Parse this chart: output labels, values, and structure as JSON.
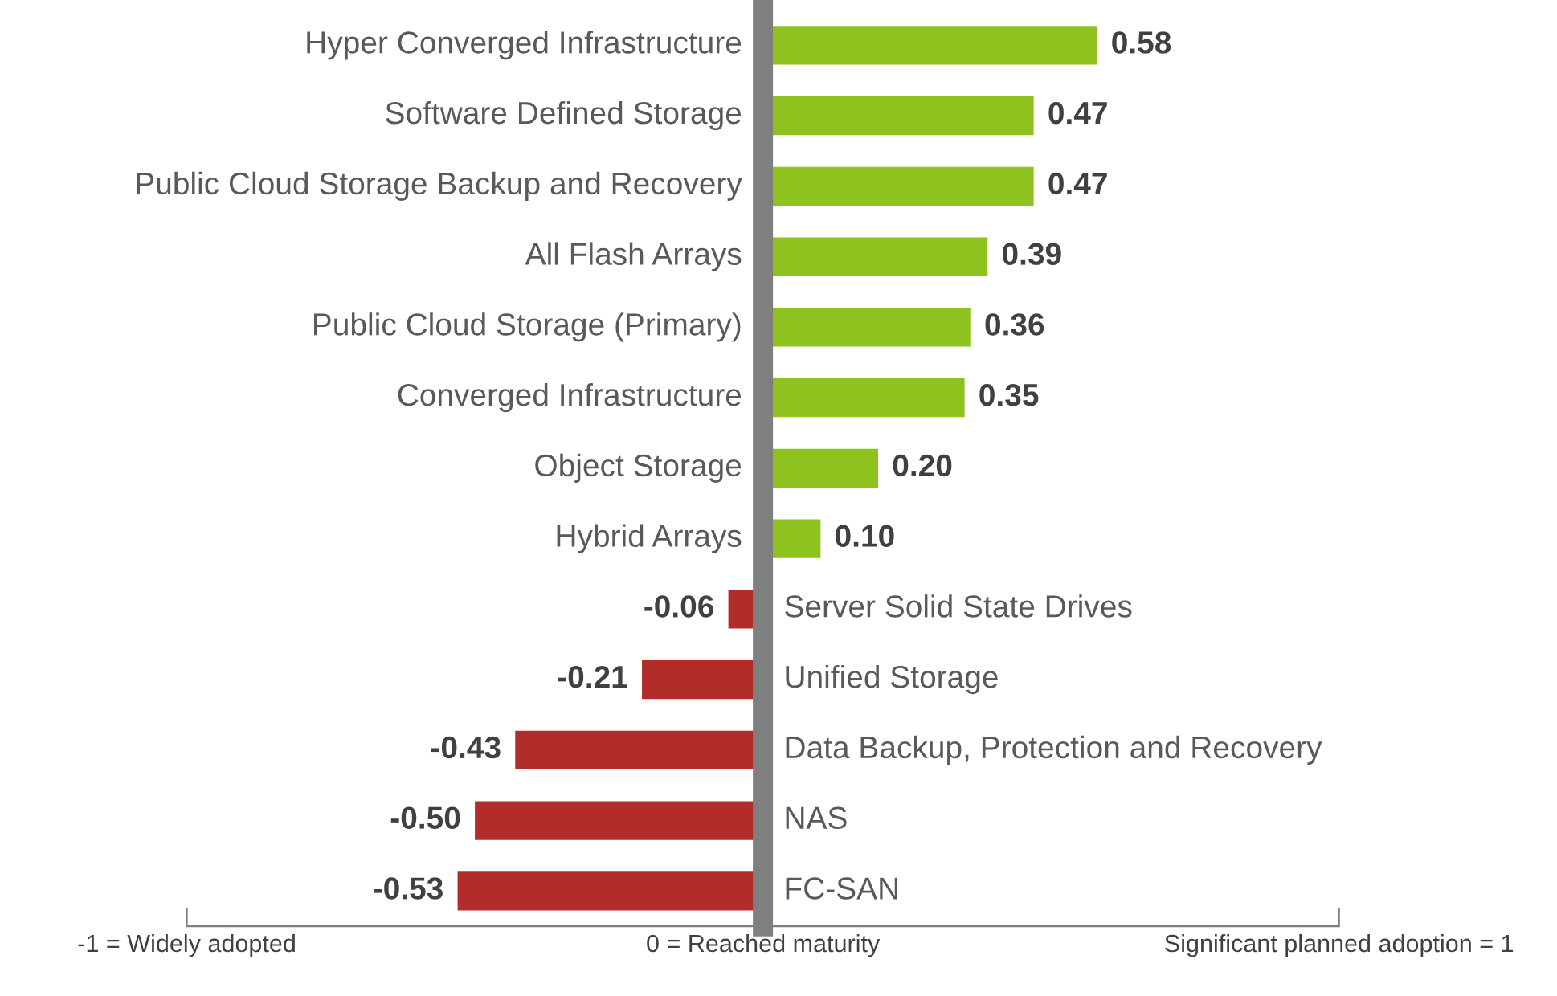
{
  "chart_data": {
    "type": "bar",
    "orientation": "horizontal",
    "categories": [
      "Hyper Converged Infrastructure",
      "Software Defined Storage",
      "Public Cloud Storage Backup and Recovery",
      "All Flash Arrays",
      "Public Cloud Storage (Primary)",
      "Converged Infrastructure",
      "Object Storage",
      "Hybrid Arrays",
      "Server Solid State Drives",
      "Unified Storage",
      "Data Backup, Protection and Recovery",
      "NAS",
      "FC-SAN"
    ],
    "values": [
      0.58,
      0.47,
      0.47,
      0.39,
      0.36,
      0.35,
      0.2,
      0.1,
      -0.06,
      -0.21,
      -0.43,
      -0.5,
      -0.53
    ],
    "colors": [
      "#8dc21f",
      "#8dc21f",
      "#8dc21f",
      "#8dc21f",
      "#8dc21f",
      "#8dc21f",
      "#8dc21f",
      "#8dc21f",
      "#b22c2a",
      "#b22c2a",
      "#b22c2a",
      "#b22c2a",
      "#b22c2a"
    ],
    "value_labels": [
      "0.58",
      "0.47",
      "0.47",
      "0.39",
      "0.36",
      "0.35",
      "0.20",
      "0.10",
      "-0.06",
      "-0.21",
      "-0.43",
      "-0.50",
      "-0.53"
    ],
    "xlim": [
      -1,
      1
    ],
    "xticks": [
      {
        "value": -1,
        "label": "-1 = Widely adopted"
      },
      {
        "value": 0,
        "label": "0 = Reached maturity"
      },
      {
        "value": 1,
        "label": "Significant planned adoption = 1"
      }
    ],
    "grid": false,
    "legend": false
  }
}
